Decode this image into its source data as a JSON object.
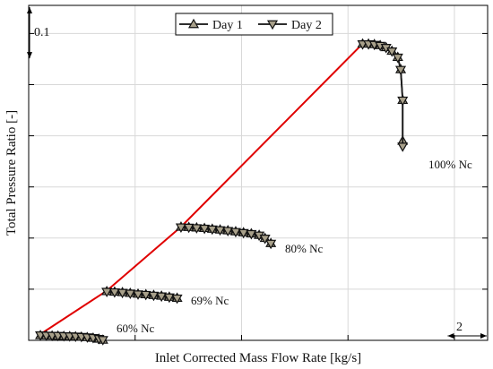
{
  "chart_data": {
    "type": "line",
    "title": "",
    "xlabel": "Inlet Corrected Mass Flow Rate [kg/s]",
    "ylabel": "Total Pressure Ratio [-]",
    "xlim": [
      0,
      23.5
    ],
    "ylim": [
      0,
      0.655
    ],
    "grid": true,
    "legend_position": "top-center",
    "scale_markers": {
      "y": {
        "label": "0.1",
        "value": 0.1
      },
      "x": {
        "label": "2",
        "value": 2
      }
    },
    "speed_line_colors": {
      "day1": "#1a1a1a",
      "day2": "#1a1a1a"
    },
    "marker_fill": "#a8a08a",
    "operating_line_color": "#e00000",
    "speedlines": [
      {
        "label": "60% Nc",
        "day1": [
          [
            0.6,
            0.01
          ],
          [
            0.9,
            0.0095
          ],
          [
            1.2,
            0.0091
          ],
          [
            1.5,
            0.0088
          ],
          [
            1.8,
            0.0083
          ],
          [
            2.1,
            0.008
          ],
          [
            2.4,
            0.0075
          ],
          [
            2.7,
            0.0069
          ],
          [
            3.0,
            0.006
          ],
          [
            3.3,
            0.0048
          ],
          [
            3.6,
            0.003
          ],
          [
            3.8,
            0.001
          ]
        ],
        "day2": [
          [
            0.6,
            0.0098
          ],
          [
            0.9,
            0.0093
          ],
          [
            1.2,
            0.009
          ],
          [
            1.5,
            0.0087
          ],
          [
            1.8,
            0.0082
          ],
          [
            2.1,
            0.0079
          ],
          [
            2.4,
            0.0074
          ],
          [
            2.7,
            0.0068
          ],
          [
            3.0,
            0.0059
          ],
          [
            3.3,
            0.0047
          ],
          [
            3.6,
            0.0028
          ],
          [
            3.8,
            0.0008
          ]
        ]
      },
      {
        "label": "69% Nc",
        "day1": [
          [
            4.0,
            0.096
          ],
          [
            4.4,
            0.095
          ],
          [
            4.8,
            0.094
          ],
          [
            5.2,
            0.0925
          ],
          [
            5.6,
            0.091
          ],
          [
            6.0,
            0.09
          ],
          [
            6.4,
            0.0885
          ],
          [
            6.8,
            0.087
          ],
          [
            7.2,
            0.085
          ],
          [
            7.6,
            0.083
          ]
        ],
        "day2": [
          [
            4.0,
            0.095
          ],
          [
            4.4,
            0.094
          ],
          [
            4.8,
            0.093
          ],
          [
            5.2,
            0.0915
          ],
          [
            5.6,
            0.09
          ],
          [
            6.0,
            0.089
          ],
          [
            6.4,
            0.0875
          ],
          [
            6.8,
            0.086
          ],
          [
            7.2,
            0.084
          ],
          [
            7.6,
            0.082
          ]
        ]
      },
      {
        "label": "80% Nc",
        "day1": [
          [
            7.8,
            0.222
          ],
          [
            8.2,
            0.2215
          ],
          [
            8.6,
            0.2205
          ],
          [
            9.0,
            0.2195
          ],
          [
            9.4,
            0.218
          ],
          [
            9.8,
            0.2165
          ],
          [
            10.2,
            0.215
          ],
          [
            10.6,
            0.213
          ],
          [
            11.0,
            0.211
          ],
          [
            11.4,
            0.209
          ],
          [
            11.8,
            0.206
          ],
          [
            12.1,
            0.2
          ],
          [
            12.4,
            0.19
          ]
        ],
        "day2": [
          [
            7.8,
            0.221
          ],
          [
            8.2,
            0.2205
          ],
          [
            8.6,
            0.2195
          ],
          [
            9.0,
            0.2185
          ],
          [
            9.4,
            0.217
          ],
          [
            9.8,
            0.2155
          ],
          [
            10.2,
            0.214
          ],
          [
            10.6,
            0.212
          ],
          [
            11.0,
            0.21
          ],
          [
            11.4,
            0.208
          ],
          [
            11.8,
            0.205
          ],
          [
            12.1,
            0.199
          ],
          [
            12.4,
            0.189
          ]
        ]
      },
      {
        "label": "100% Nc",
        "day1": [
          [
            17.1,
            0.58
          ],
          [
            17.4,
            0.58
          ],
          [
            17.7,
            0.579
          ],
          [
            18.0,
            0.577
          ],
          [
            18.3,
            0.573
          ],
          [
            18.6,
            0.566
          ],
          [
            18.9,
            0.554
          ],
          [
            19.05,
            0.53
          ],
          [
            19.15,
            0.47
          ],
          [
            19.15,
            0.39
          ]
        ],
        "day2": [
          [
            17.1,
            0.579
          ],
          [
            17.4,
            0.579
          ],
          [
            17.7,
            0.578
          ],
          [
            18.0,
            0.576
          ],
          [
            18.3,
            0.572
          ],
          [
            18.6,
            0.565
          ],
          [
            18.9,
            0.553
          ],
          [
            19.05,
            0.529
          ],
          [
            19.15,
            0.469
          ],
          [
            19.15,
            0.379
          ]
        ]
      }
    ],
    "operating_line": [
      [
        0.6,
        0.012
      ],
      [
        4.0,
        0.097
      ],
      [
        7.8,
        0.222
      ],
      [
        17.1,
        0.58
      ]
    ],
    "legend": [
      {
        "name": "Day 1",
        "marker": "triangle-up"
      },
      {
        "name": "Day 2",
        "marker": "triangle-down"
      }
    ]
  }
}
